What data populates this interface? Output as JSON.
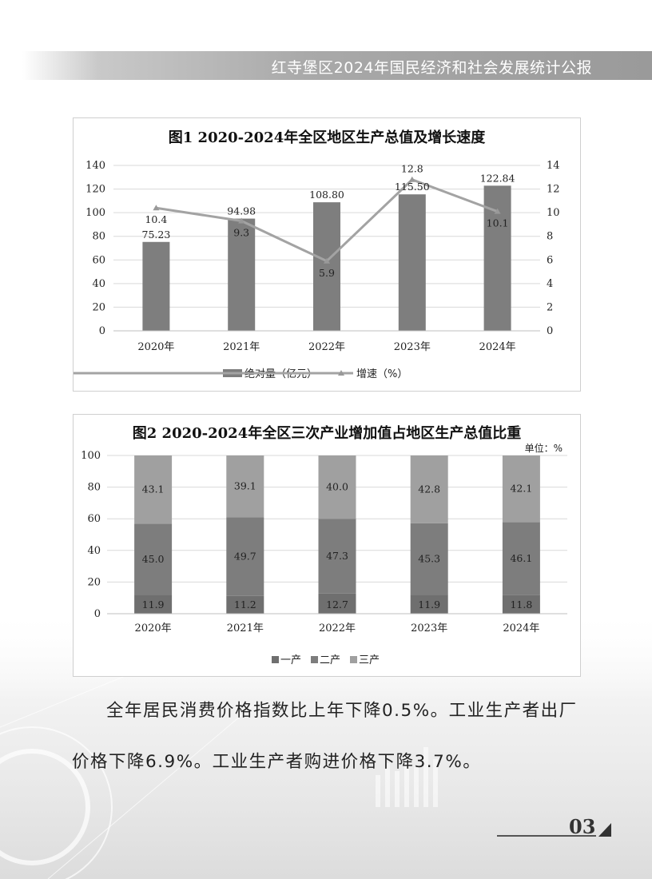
{
  "header": {
    "title": "红寺堡区2024年国民经济和社会发展统计公报"
  },
  "chart_data": [
    {
      "type": "bar",
      "title": "图1 2020-2024年全区地区生产总值及增长速度",
      "categories": [
        "2020年",
        "2021年",
        "2022年",
        "2023年",
        "2024年"
      ],
      "series": [
        {
          "name": "绝对量（亿元）",
          "type": "bar",
          "axis": "left",
          "values": [
            75.23,
            94.98,
            108.8,
            115.5,
            122.84
          ],
          "labels": [
            "75.23",
            "94.98",
            "108.80",
            "115.50",
            "122.84"
          ]
        },
        {
          "name": "增速（%）",
          "type": "line",
          "axis": "right",
          "values": [
            10.4,
            9.3,
            5.9,
            12.8,
            10.1
          ],
          "labels": [
            "10.4",
            "9.3",
            "5.9",
            "12.8",
            "10.1"
          ]
        }
      ],
      "ylim": [
        0,
        140
      ],
      "yticks": [
        "0",
        "20",
        "40",
        "60",
        "80",
        "100",
        "120",
        "140"
      ],
      "y2lim": [
        0,
        14
      ],
      "y2ticks": [
        "0",
        "2",
        "4",
        "6",
        "8",
        "10",
        "12",
        "14"
      ],
      "grid": true,
      "legend": "bottom",
      "colors": {
        "bar": "#7e7e7e",
        "line": "#a3a3a3"
      }
    },
    {
      "type": "bar",
      "stacked": true,
      "title": "图2 2020-2024年全区三次产业增加值占地区生产总值比重",
      "unit": "单位：%",
      "categories": [
        "2020年",
        "2021年",
        "2022年",
        "2023年",
        "2024年"
      ],
      "series": [
        {
          "name": "一产",
          "values": [
            11.9,
            11.2,
            12.7,
            11.9,
            11.8
          ],
          "labels": [
            "11.9",
            "11.2",
            "12.7",
            "11.9",
            "11.8"
          ]
        },
        {
          "name": "二产",
          "values": [
            45.0,
            49.7,
            47.3,
            45.3,
            46.1
          ],
          "labels": [
            "45.0",
            "49.7",
            "47.3",
            "45.3",
            "46.1"
          ]
        },
        {
          "name": "三产",
          "values": [
            43.1,
            39.1,
            40.0,
            42.8,
            42.1
          ],
          "labels": [
            "43.1",
            "39.1",
            "40.0",
            "42.8",
            "42.1"
          ]
        }
      ],
      "ylim": [
        0,
        100
      ],
      "yticks": [
        "0",
        "20",
        "40",
        "60",
        "80",
        "100"
      ],
      "grid": true,
      "legend": "bottom",
      "colors": {
        "一产": "#6f6f6f",
        "二产": "#7d7d7d",
        "三产": "#a0a0a0"
      }
    }
  ],
  "body": {
    "line1": "全年居民消费价格指数比上年下降0.5%。工业生产者出厂",
    "line2": "价格下降6.9%。工业生产者购进价格下降3.7%。"
  },
  "page_number": "03"
}
